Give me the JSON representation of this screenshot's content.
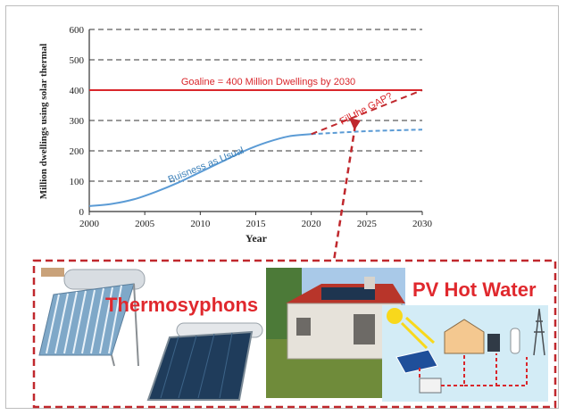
{
  "chart_data": {
    "type": "line",
    "ylabel": "Million dwellings using solar thermal",
    "xlabel": "Year",
    "xlim": [
      2000,
      2030
    ],
    "ylim": [
      0,
      600
    ],
    "xticks": [
      2000,
      2005,
      2010,
      2015,
      2020,
      2025,
      2030
    ],
    "yticks": [
      0,
      100,
      200,
      300,
      400,
      500,
      600
    ],
    "grid": "horizontal dashed",
    "goal_line": {
      "value": 400,
      "label": "Goaline = 400 Million Dwellings by 2030",
      "color": "#d9262b"
    },
    "series": [
      {
        "name": "Buisness as Usual",
        "color": "#5b9bd5",
        "x": [
          2000,
          2002,
          2004,
          2006,
          2008,
          2010,
          2012,
          2014,
          2016,
          2018,
          2020
        ],
        "y": [
          18,
          25,
          40,
          65,
          95,
          130,
          165,
          200,
          228,
          248,
          255
        ]
      },
      {
        "name": "Buisness as Usual projection",
        "color": "#5b9bd5",
        "style": "dashed",
        "x": [
          2020,
          2025,
          2030
        ],
        "y": [
          255,
          265,
          270
        ]
      },
      {
        "name": "Fill the GAP?",
        "color": "#c0282d",
        "style": "dashed",
        "x": [
          2020,
          2030
        ],
        "y": [
          255,
          400
        ]
      }
    ],
    "annotations": [
      "Fill the GAP?",
      "Buisness as Usual"
    ]
  },
  "panel": {
    "thermosyphons_label": "Thermosyphons",
    "pv_label": "PV Hot Water"
  },
  "colors": {
    "accent_red": "#d9262b",
    "bau_blue": "#5b9bd5"
  }
}
